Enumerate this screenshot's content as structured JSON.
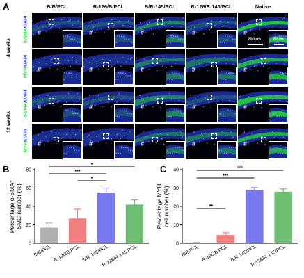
{
  "panels": {
    "A": {
      "letter": "A",
      "columns": [
        "B/B/PCL",
        "R-126/B/PCL",
        "B/R-145/PCL",
        "R-126/R-145/PCL",
        "Native"
      ],
      "weeks": [
        "4 weeks",
        "12 weeks"
      ],
      "rows": [
        {
          "stain_a": "α-SMA",
          "stain_b": "DAPI",
          "color_a": "#22e03a"
        },
        {
          "stain_a": "MYH",
          "stain_b": "DAPI",
          "color_a": "#22e03a"
        },
        {
          "stain_a": "α-SMA",
          "stain_b": "DAPI",
          "color_a": "#22e03a"
        },
        {
          "stain_a": "MYH",
          "stain_b": "DAPI",
          "color_a": "#22e03a"
        }
      ],
      "hash_mark": "#",
      "scale_main": "200μm",
      "scale_inset": "20μm",
      "divider": "/"
    },
    "B": {
      "letter": "B"
    },
    "C": {
      "letter": "C"
    }
  },
  "chart_data": [
    {
      "type": "bar",
      "categories": [
        "B/B/PCL",
        "R-126/B/PCL",
        "B/R-145/PCL",
        "R-126/R-145/PCL"
      ],
      "values": [
        17,
        27,
        55,
        42
      ],
      "errors": [
        5,
        10,
        5,
        5
      ],
      "colors": [
        "#b0b0b0",
        "#f07f7f",
        "#7777ee",
        "#6fbf73"
      ],
      "ylabel_lines": [
        "Percentage α-SMA⁺",
        "SMC number (%)"
      ],
      "ylim": [
        0,
        80
      ],
      "yticks": [
        0,
        20,
        40,
        60,
        80
      ],
      "significance": [
        {
          "from": 0,
          "to": 3,
          "label": "*"
        },
        {
          "from": 0,
          "to": 2,
          "label": "***"
        },
        {
          "from": 1,
          "to": 2,
          "label": "*"
        }
      ]
    },
    {
      "type": "bar",
      "categories": [
        "B/B/PCL",
        "R-126/B/PCL",
        "B/R-145/PCL",
        "R-126/R-145/PCL"
      ],
      "values": [
        0.3,
        4.5,
        29,
        28
      ],
      "errors": [
        0.2,
        1.2,
        1.2,
        1.5
      ],
      "colors": [
        "#b0b0b0",
        "#f07f7f",
        "#7777ee",
        "#6fbf73"
      ],
      "ylabel_lines": [
        "Percentage MYH",
        "cell number (%)"
      ],
      "ylim": [
        0,
        40
      ],
      "yticks": [
        0,
        10,
        20,
        30,
        40
      ],
      "significance": [
        {
          "from": 0,
          "to": 3,
          "label": "***"
        },
        {
          "from": 0,
          "to": 2,
          "label": "***"
        },
        {
          "from": 0,
          "to": 1,
          "label": "**"
        }
      ]
    }
  ]
}
